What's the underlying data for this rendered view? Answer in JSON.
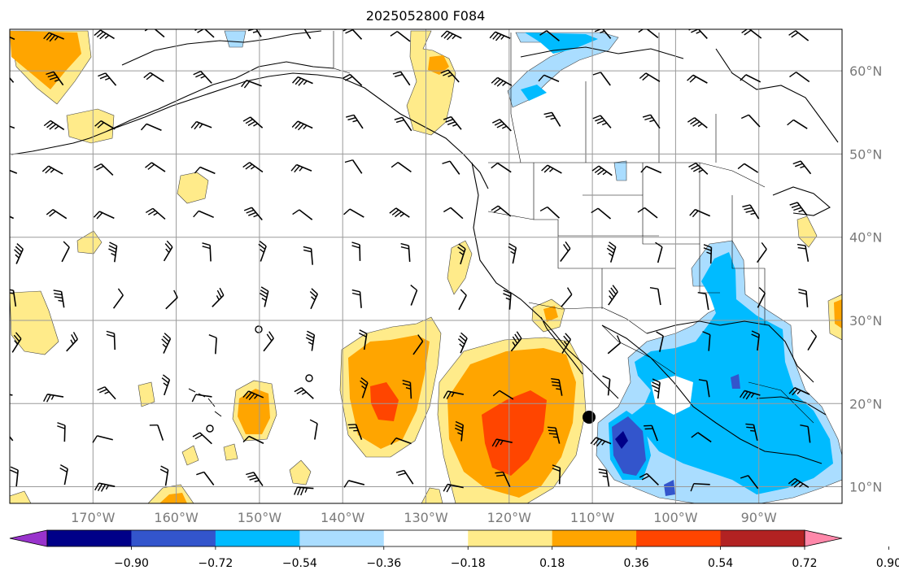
{
  "title": "2025052800 F084",
  "map": {
    "lon_ticks": [
      {
        "lon": -170,
        "label": "170°W"
      },
      {
        "lon": -160,
        "label": "160°W"
      },
      {
        "lon": -150,
        "label": "150°W"
      },
      {
        "lon": -140,
        "label": "140°W"
      },
      {
        "lon": -130,
        "label": "130°W"
      },
      {
        "lon": -120,
        "label": "120°W"
      },
      {
        "lon": -110,
        "label": "110°W"
      },
      {
        "lon": -100,
        "label": "100°W"
      },
      {
        "lon": -90,
        "label": "90°W"
      }
    ],
    "lat_ticks": [
      {
        "lat": 10,
        "label": "10°N"
      },
      {
        "lat": 20,
        "label": "20°N"
      },
      {
        "lat": 30,
        "label": "30°N"
      },
      {
        "lat": 40,
        "label": "40°N"
      },
      {
        "lat": 50,
        "label": "50°N"
      },
      {
        "lat": 60,
        "label": "60°N"
      }
    ],
    "gridlines": true,
    "extent": {
      "lon": [
        -180,
        -80
      ],
      "lat": [
        8,
        65
      ]
    }
  },
  "colorbar": {
    "labels": [
      "−0.90",
      "−0.72",
      "−0.54",
      "−0.36",
      "−0.18",
      "0.18",
      "0.36",
      "0.54",
      "0.72",
      "0.90"
    ],
    "colors": [
      "#9933cc",
      "#000088",
      "#3355cc",
      "#00bbff",
      "#aaddff",
      "#ffffff",
      "#ffeb8a",
      "#ffa500",
      "#ff4500",
      "#b22222",
      "#ff88aa"
    ],
    "extend": "both"
  }
}
